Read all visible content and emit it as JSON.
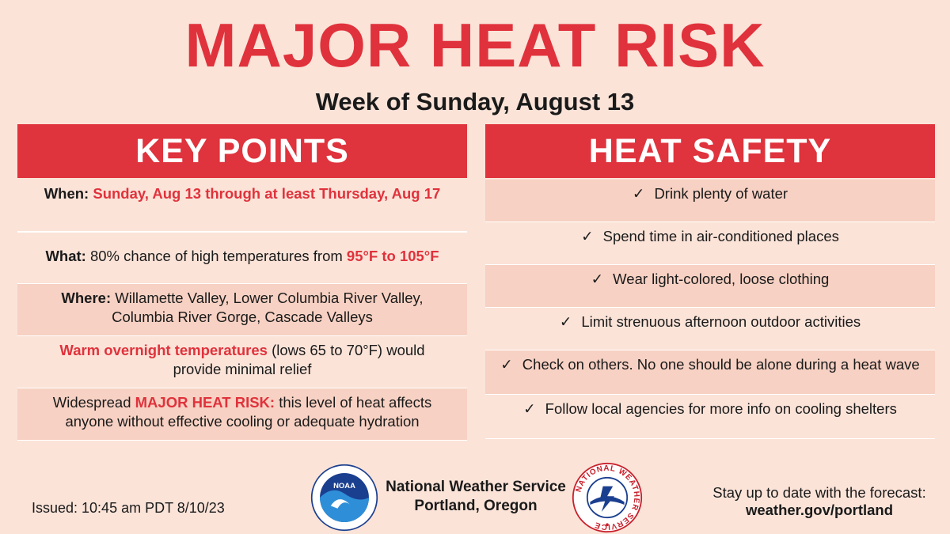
{
  "title": "MAJOR HEAT RISK",
  "subtitle": "Week of Sunday, August 13",
  "key_points": {
    "header": "KEY POINTS",
    "when": {
      "label": "When:",
      "value": "Sunday, Aug 13 through at least Thursday, Aug 17"
    },
    "what": {
      "label": "What:",
      "text": "80% chance of high temperatures from",
      "highlight": "95°F to 105°F"
    },
    "where": {
      "label": "Where:",
      "line1": "Willamette Valley, Lower Columbia River Valley,",
      "line2": "Columbia River Gorge, Cascade Valleys"
    },
    "overnight": {
      "highlight": "Warm overnight temperatures",
      "text1": "(lows 65 to 70°F) would",
      "text2": "provide minimal relief"
    },
    "widespread": {
      "text1": "Widespread",
      "highlight": "MAJOR HEAT RISK:",
      "text2": "this level of heat affects",
      "text3": "anyone without effective cooling or adequate hydration"
    }
  },
  "heat_safety": {
    "header": "HEAT SAFETY",
    "check": "✓",
    "items": [
      "Drink plenty of water",
      "Spend time in air-conditioned places",
      "Wear light-colored, loose clothing",
      "Limit strenuous afternoon outdoor activities",
      "Check on others. No one should be alone during a heat wave",
      "Follow local agencies for more info on cooling shelters"
    ]
  },
  "footer": {
    "issued": "Issued: 10:45 am PDT 8/10/23",
    "org_line1": "National Weather Service",
    "org_line2": "Portland, Oregon",
    "noaa_text": "NOAA",
    "nws_ring_text": "NATIONAL WEATHER SERVICE",
    "stay": "Stay up to date with the forecast:",
    "url": "weather.gov/portland"
  },
  "colors": {
    "accent": "#df333d",
    "background": "#fbe3d8",
    "row_alt": "#f7d1c3"
  }
}
